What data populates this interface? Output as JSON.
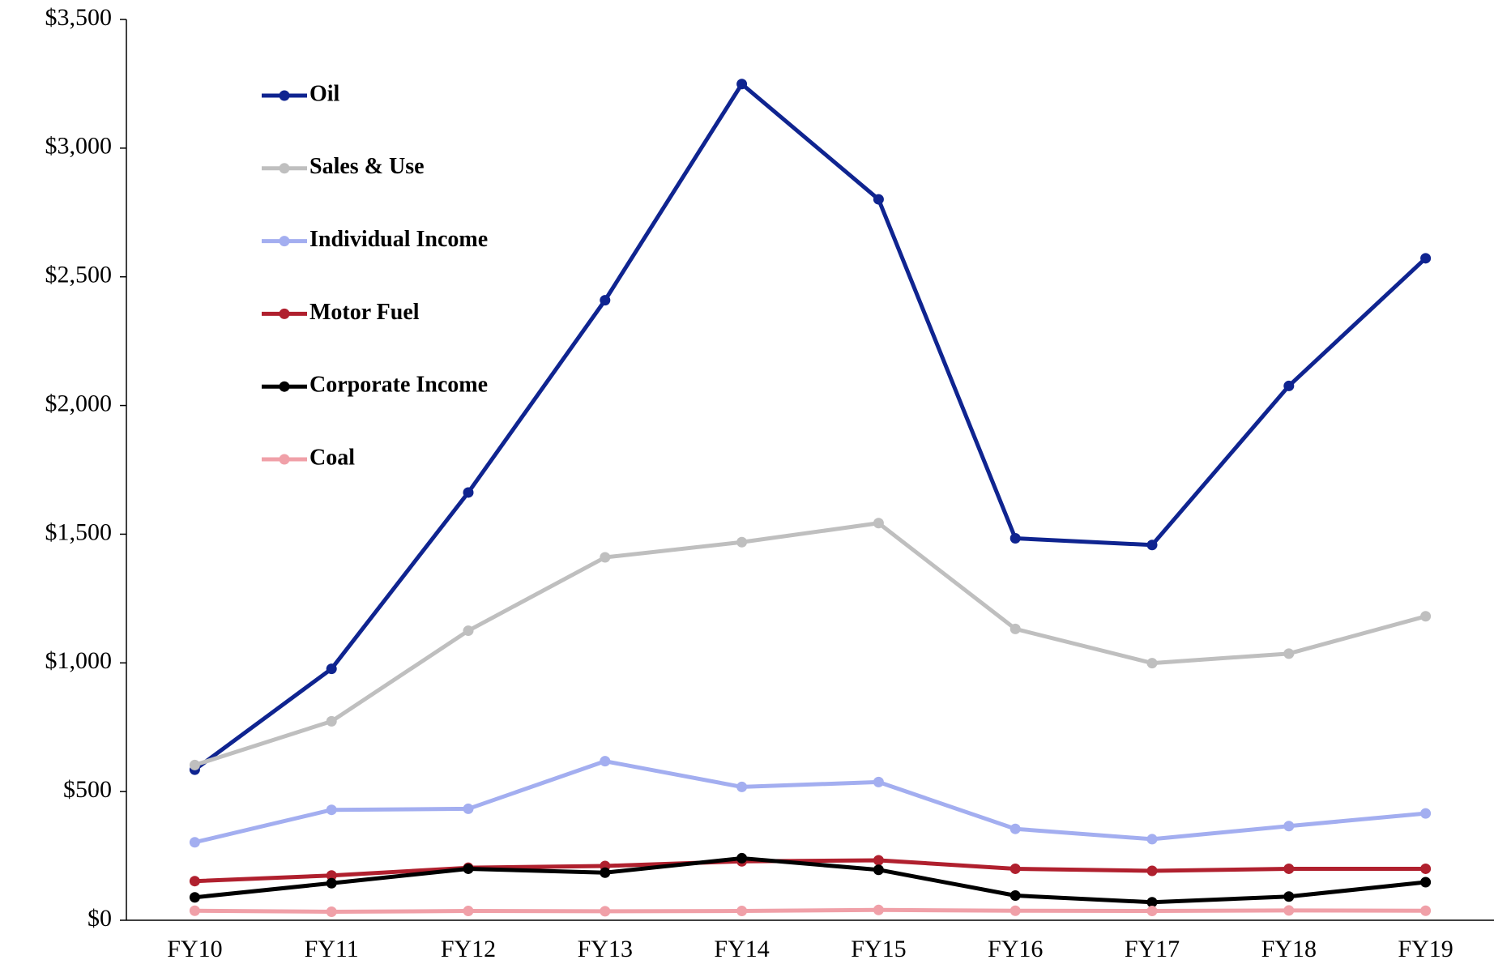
{
  "chart_data": {
    "type": "line",
    "categories": [
      "FY10",
      "FY11",
      "FY12",
      "FY13",
      "FY14",
      "FY15",
      "FY16",
      "FY17",
      "FY18",
      "FY19"
    ],
    "series": [
      {
        "name": "Oil",
        "color": "#0f2490",
        "values": [
          585,
          977,
          1662,
          2409,
          3249,
          2801,
          1484,
          1458,
          2076,
          2572
        ]
      },
      {
        "name": "Sales & Use",
        "color": "#bfbfbf",
        "values": [
          603,
          773,
          1125,
          1410,
          1469,
          1543,
          1132,
          999,
          1036,
          1181
        ]
      },
      {
        "name": "Individual Income",
        "color": "#a3aef0",
        "values": [
          303,
          429,
          433,
          618,
          518,
          537,
          355,
          315,
          366,
          415
        ]
      },
      {
        "name": "Motor Fuel",
        "color": "#b0202e",
        "values": [
          152,
          174,
          204,
          211,
          229,
          233,
          200,
          192,
          200,
          200
        ]
      },
      {
        "name": "Corporate Income",
        "color": "#000000",
        "values": [
          89,
          144,
          200,
          185,
          241,
          196,
          96,
          70,
          92,
          148
        ]
      },
      {
        "name": "Coal",
        "color": "#f0a0a8",
        "values": [
          37,
          33,
          36,
          35,
          36,
          40,
          37,
          36,
          38,
          37
        ]
      }
    ],
    "ylim": [
      0,
      3500
    ],
    "yticks": [
      {
        "value": 0,
        "label": "$0"
      },
      {
        "value": 500,
        "label": "$500"
      },
      {
        "value": 1000,
        "label": "$1,000"
      },
      {
        "value": 1500,
        "label": "$1,500"
      },
      {
        "value": 2000,
        "label": "$2,000"
      },
      {
        "value": 2500,
        "label": "$2,500"
      },
      {
        "value": 3000,
        "label": "$3,000"
      },
      {
        "value": 3500,
        "label": "$3,500"
      }
    ],
    "legend": "upper left"
  }
}
